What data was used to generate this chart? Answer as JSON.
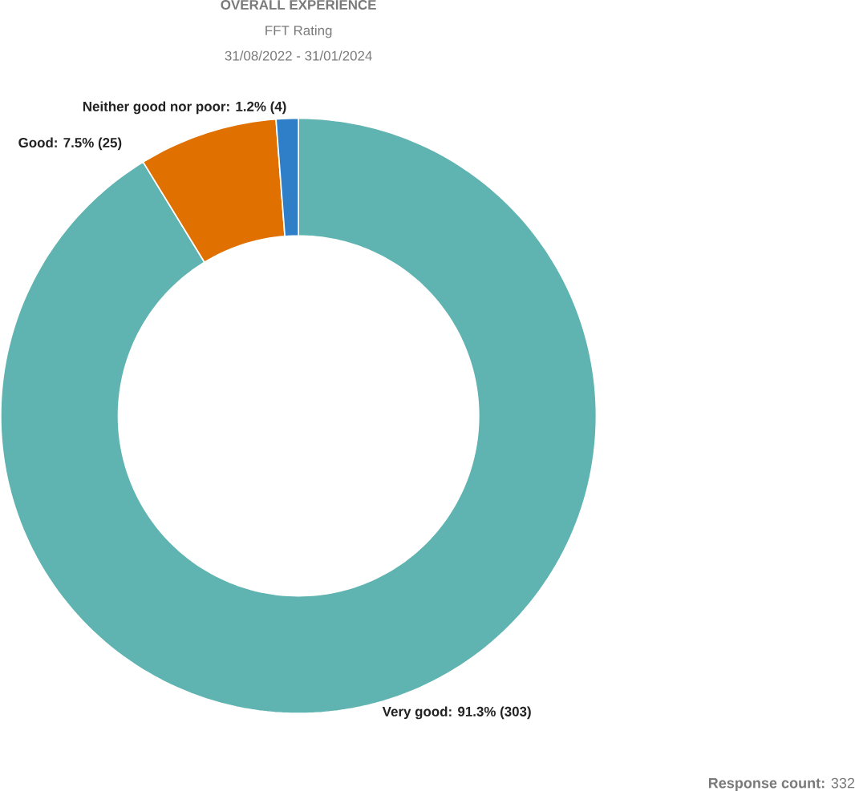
{
  "chart_data": {
    "type": "donut",
    "title": "OVERALL EXPERIENCE",
    "subtitle": "FFT Rating",
    "categories": [
      "Very good",
      "Good",
      "Neither good nor poor"
    ],
    "values": [
      303,
      25,
      4
    ],
    "colors": [
      "#5fb3b0",
      "#e07000",
      "#2f7fc8"
    ],
    "value_labels": [
      ": 91.3% (303)",
      ": 7.5% (25)",
      ": 1.2% (4)"
    ],
    "annotations": [
      "31/08/2022 - 31/01/2024",
      "**Response count:** 332"
    ]
  }
}
